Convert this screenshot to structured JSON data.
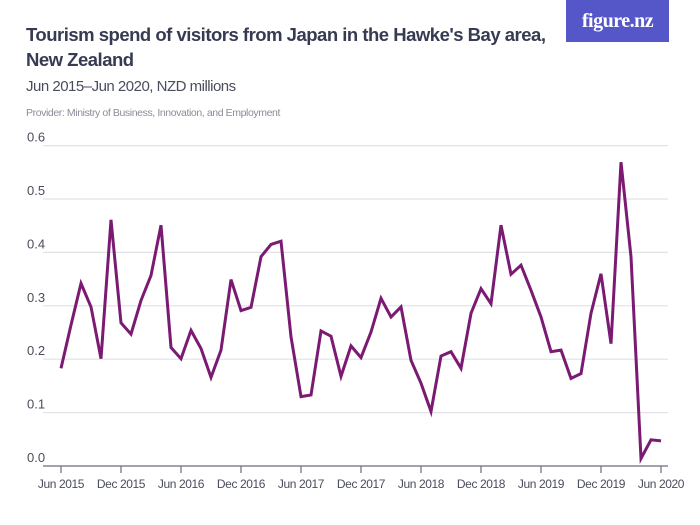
{
  "header": {
    "title": "Tourism spend of visitors from Japan in the Hawke's Bay area, New Zealand",
    "subtitle": "Jun 2015–Jun 2020, NZD millions",
    "provider": "Provider: Ministry of Business, Innovation, and Employment",
    "logo_text": "figure.nz",
    "logo_color": "#5557c8"
  },
  "chart_data": {
    "type": "line",
    "title": "Tourism spend of visitors from Japan in the Hawke's Bay area, New Zealand",
    "subtitle": "Jun 2015–Jun 2020, NZD millions",
    "xlabel": "",
    "ylabel": "",
    "x_start": "Jun 2015",
    "x_end": "Jun 2020",
    "x_frequency": "monthly",
    "x_tick_labels": [
      "Jun 2015",
      "Dec 2015",
      "Jun 2016",
      "Dec 2016",
      "Jun 2017",
      "Dec 2017",
      "Jun 2018",
      "Dec 2018",
      "Jun 2019",
      "Dec 2019",
      "Jun 2020"
    ],
    "y_ticks": [
      "0.0",
      "0.1",
      "0.2",
      "0.3",
      "0.4",
      "0.5",
      "0.6"
    ],
    "ylim": [
      0,
      0.6
    ],
    "grid": true,
    "line_color": "#7b1a72",
    "values": [
      0.183,
      0.264,
      0.342,
      0.298,
      0.201,
      0.461,
      0.268,
      0.247,
      0.31,
      0.357,
      0.451,
      0.222,
      0.201,
      0.254,
      0.22,
      0.166,
      0.217,
      0.349,
      0.291,
      0.297,
      0.392,
      0.415,
      0.421,
      0.242,
      0.13,
      0.133,
      0.253,
      0.243,
      0.168,
      0.225,
      0.203,
      0.251,
      0.314,
      0.279,
      0.298,
      0.198,
      0.155,
      0.102,
      0.206,
      0.214,
      0.183,
      0.286,
      0.332,
      0.304,
      0.451,
      0.359,
      0.376,
      0.329,
      0.279,
      0.214,
      0.217,
      0.164,
      0.173,
      0.286,
      0.36,
      0.229,
      0.569,
      0.392,
      0.014,
      0.049,
      0.047
    ]
  }
}
